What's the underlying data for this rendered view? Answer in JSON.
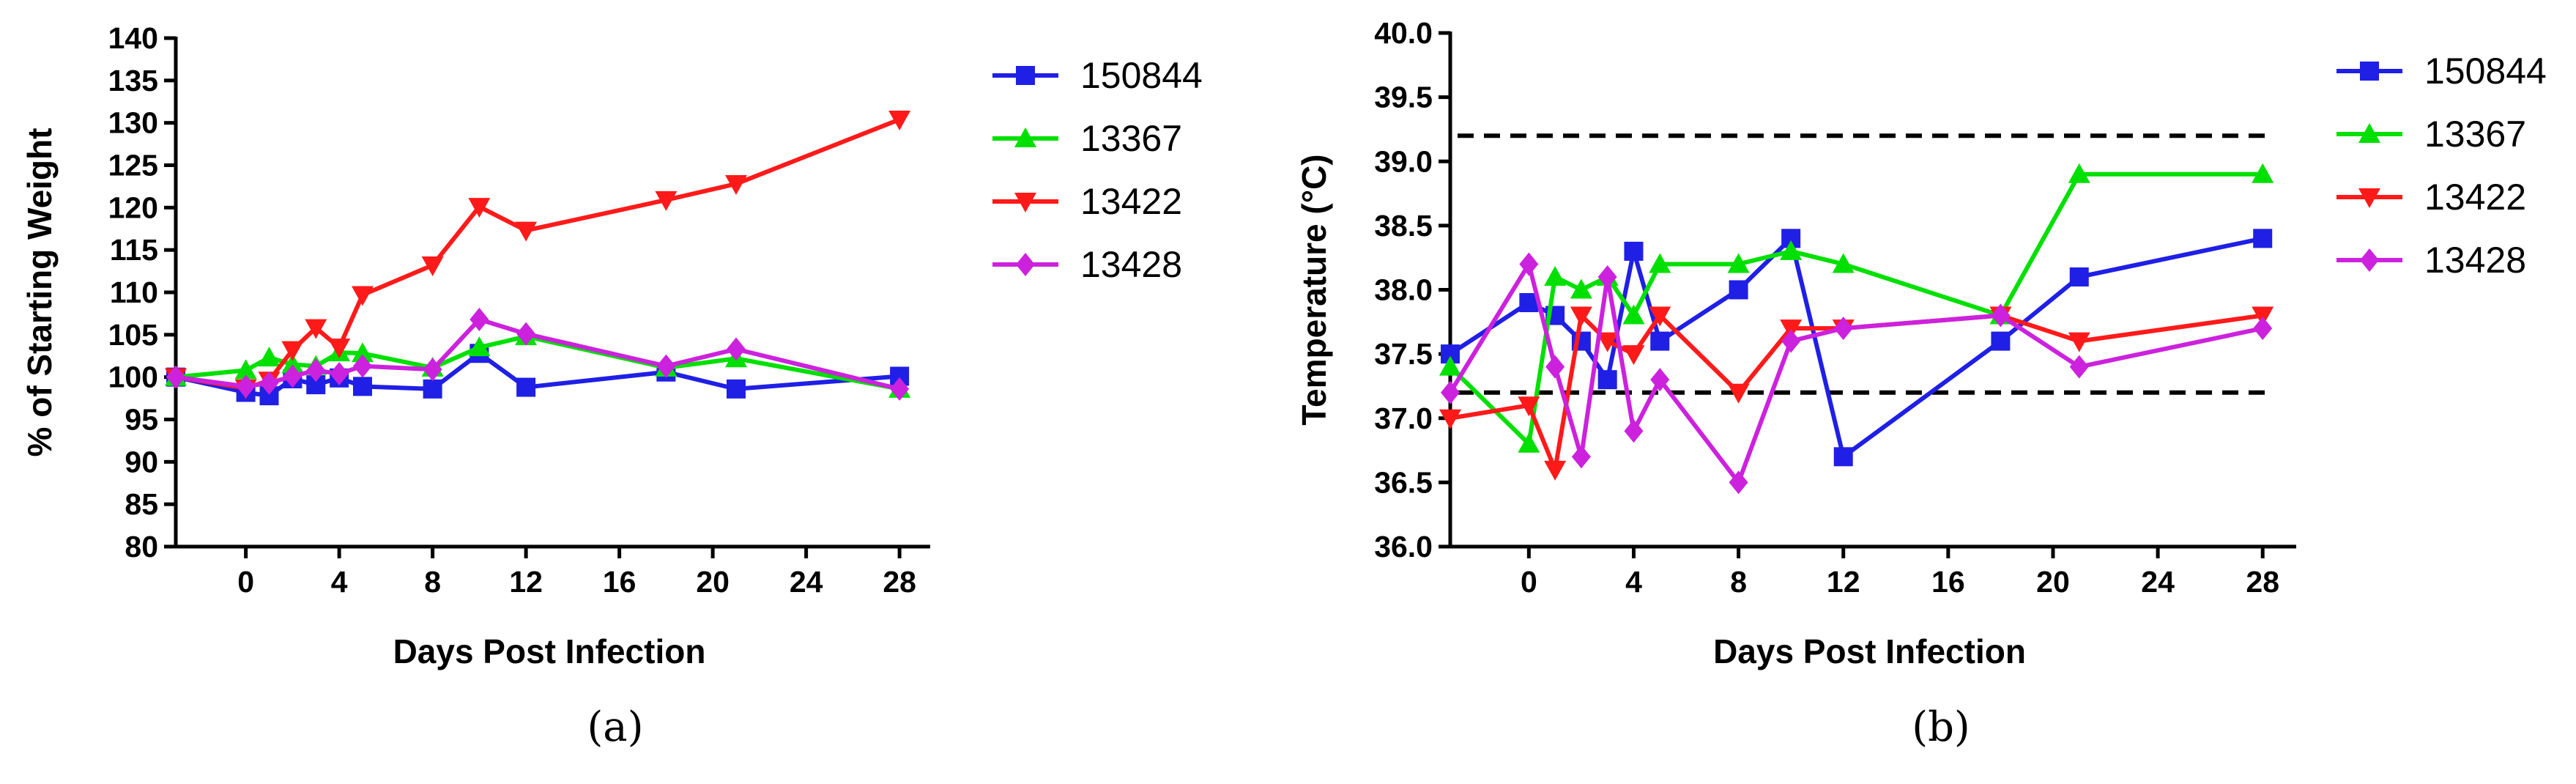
{
  "chart_data": [
    {
      "type": "line",
      "caption": "(a)",
      "title": "",
      "xlabel": "Days Post Infection",
      "ylabel": "% of Starting Weight",
      "xlim": [
        -3,
        29
      ],
      "ylim": [
        80,
        140
      ],
      "xticks": [
        0,
        4,
        8,
        12,
        16,
        20,
        24,
        28
      ],
      "yticks": [
        80,
        85,
        90,
        95,
        100,
        105,
        110,
        115,
        120,
        125,
        130,
        135,
        140
      ],
      "grid": false,
      "legend_position": "top-right",
      "series": [
        {
          "name": "150844",
          "color": "#1f1fe6",
          "marker": "square",
          "x": [
            -3,
            0,
            1,
            2,
            3,
            4,
            5,
            8,
            10,
            12,
            18,
            21,
            28
          ],
          "y": [
            100,
            98.2,
            97.8,
            99.8,
            99.1,
            99.9,
            98.9,
            98.6,
            102.8,
            98.8,
            100.6,
            98.6,
            100.1
          ]
        },
        {
          "name": "13367",
          "color": "#00e000",
          "marker": "triangle-up",
          "x": [
            -3,
            0,
            1,
            2,
            3,
            4,
            5,
            8,
            10,
            12,
            18,
            21,
            28
          ],
          "y": [
            100,
            100.8,
            102.3,
            101.5,
            101.3,
            102.9,
            102.8,
            101.1,
            103.5,
            104.8,
            101.1,
            102.2,
            98.6
          ]
        },
        {
          "name": "13422",
          "color": "#ff1a1a",
          "marker": "triangle-down",
          "x": [
            -3,
            0,
            1,
            2,
            3,
            4,
            5,
            8,
            10,
            12,
            18,
            21,
            28
          ],
          "y": [
            100,
            98.7,
            99.6,
            103.2,
            105.8,
            103.5,
            109.7,
            113.2,
            120.1,
            117.3,
            120.9,
            122.8,
            130.4
          ]
        },
        {
          "name": "13428",
          "color": "#cc22dd",
          "marker": "diamond",
          "x": [
            -3,
            0,
            1,
            2,
            3,
            4,
            5,
            8,
            10,
            12,
            18,
            21,
            28
          ],
          "y": [
            100,
            98.9,
            99.3,
            100.1,
            100.8,
            100.4,
            101.3,
            100.9,
            106.8,
            105.1,
            101.3,
            103.3,
            98.6
          ]
        }
      ]
    },
    {
      "type": "line",
      "caption": "(b)",
      "title": "",
      "xlabel": "Days Post Infection",
      "ylabel": "Temperature (°C)",
      "xlim": [
        -3,
        29
      ],
      "ylim": [
        36.0,
        40.0
      ],
      "xticks": [
        0,
        4,
        8,
        12,
        16,
        20,
        24,
        28
      ],
      "yticks": [
        "36.0",
        "36.5",
        "37.0",
        "37.5",
        "38.0",
        "38.5",
        "39.0",
        "39.5",
        "40.0"
      ],
      "reference_lines": [
        39.2,
        37.2
      ],
      "grid": false,
      "legend_position": "top-right",
      "series": [
        {
          "name": "150844",
          "color": "#1f1fe6",
          "marker": "square",
          "x": [
            -3,
            0,
            1,
            2,
            3,
            4,
            5,
            8,
            10,
            12,
            18,
            21,
            28
          ],
          "y": [
            37.5,
            37.9,
            37.8,
            37.6,
            37.3,
            38.3,
            37.6,
            38.0,
            38.4,
            36.7,
            37.6,
            38.1,
            38.4
          ]
        },
        {
          "name": "13367",
          "color": "#00e000",
          "marker": "triangle-up",
          "x": [
            -3,
            0,
            1,
            2,
            3,
            4,
            5,
            8,
            10,
            12,
            18,
            21,
            28
          ],
          "y": [
            37.4,
            36.8,
            38.1,
            38.0,
            38.1,
            37.8,
            38.2,
            38.2,
            38.3,
            38.2,
            37.8,
            38.9,
            38.9
          ]
        },
        {
          "name": "13422",
          "color": "#ff1a1a",
          "marker": "triangle-down",
          "x": [
            -3,
            0,
            1,
            2,
            3,
            4,
            5,
            8,
            10,
            12,
            18,
            21,
            28
          ],
          "y": [
            37.0,
            37.1,
            36.6,
            37.8,
            37.6,
            37.5,
            37.8,
            37.2,
            37.7,
            37.7,
            37.8,
            37.6,
            37.8
          ]
        },
        {
          "name": "13428",
          "color": "#cc22dd",
          "marker": "diamond",
          "x": [
            -3,
            0,
            1,
            2,
            3,
            4,
            5,
            8,
            10,
            12,
            18,
            21,
            28
          ],
          "y": [
            37.2,
            38.2,
            37.4,
            36.7,
            38.1,
            36.9,
            37.3,
            36.5,
            37.6,
            37.7,
            37.8,
            37.4,
            37.7
          ]
        }
      ]
    }
  ]
}
